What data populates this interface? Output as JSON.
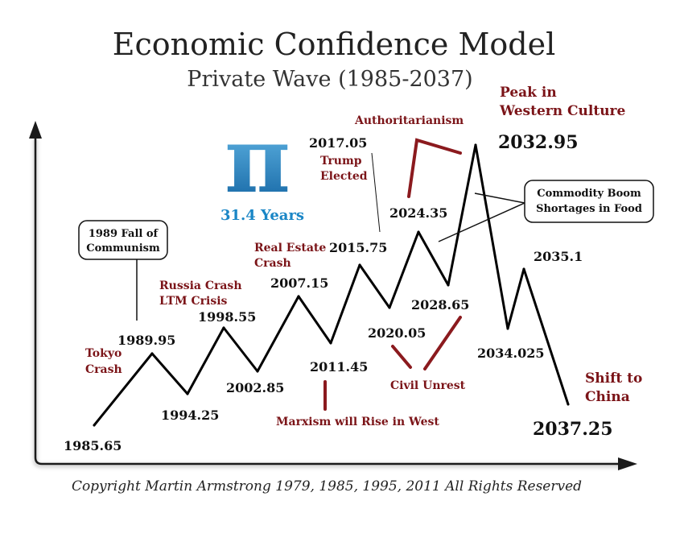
{
  "header": {
    "title": "Economic Confidence Model",
    "subtitle": "Private Wave (1985-2037)"
  },
  "pi_badge": {
    "symbol": "π",
    "caption": "31.4 Years",
    "color": "#1a86c6"
  },
  "copyright": "Copyright Martin Armstrong 1979, 1985, 1995, 2011 All Rights Reserved",
  "callouts": {
    "communism": [
      "1989 Fall of",
      "Communism"
    ],
    "commodity": [
      "Commodity Boom",
      "Shortages in Food"
    ]
  },
  "events": {
    "tokyo": [
      "Tokyo",
      "Crash"
    ],
    "russia": [
      "Russia Crash",
      "LTM Crisis"
    ],
    "real_estate": [
      "Real Estate",
      "Crash"
    ],
    "trump": [
      "Trump",
      "Elected"
    ],
    "authoritarianism": "Authoritarianism",
    "peak_western": [
      "Peak in",
      "Western Culture"
    ],
    "marxism": "Marxism will Rise in West",
    "civil_unrest": "Civil Unrest",
    "shift_china": [
      "Shift to",
      "China"
    ]
  },
  "colors": {
    "wave": "#000000",
    "event_text": "#7b1418",
    "event_marker": "#8b1a1e"
  },
  "chart_data": {
    "type": "line",
    "title": "Economic Confidence Model",
    "subtitle": "Private Wave (1985-2037)",
    "series": [
      {
        "points": [
          {
            "x": "1985.65",
            "y": "trough"
          },
          {
            "x": "1989.95",
            "y": "peak"
          },
          {
            "x": "1994.25",
            "y": "trough"
          },
          {
            "x": "1998.55",
            "y": "peak"
          },
          {
            "x": "2002.85",
            "y": "trough"
          },
          {
            "x": "2007.15",
            "y": "peak"
          },
          {
            "x": "2011.45",
            "y": "trough"
          },
          {
            "x": "2015.75",
            "y": "peak"
          },
          {
            "x": "2020.05",
            "y": "trough"
          },
          {
            "x": "2024.35",
            "y": "peak"
          },
          {
            "x": "2028.65",
            "y": "trough"
          },
          {
            "x": "2032.95",
            "y": "peak"
          },
          {
            "x": "2034.025",
            "y": "trough"
          },
          {
            "x": "2035.1",
            "y": "peak"
          },
          {
            "x": "2037.25",
            "y": "trough"
          }
        ]
      }
    ],
    "point_labels": [
      "1985.65",
      "1989.95",
      "1994.25",
      "1998.55",
      "2002.85",
      "2007.15",
      "2011.45",
      "2015.75",
      "2020.05",
      "2024.35",
      "2028.65",
      "2032.95",
      "2034.025",
      "2035.1",
      "2037.25"
    ],
    "extra_labels": [
      "2017.05"
    ],
    "grid": false,
    "legend": "none"
  }
}
